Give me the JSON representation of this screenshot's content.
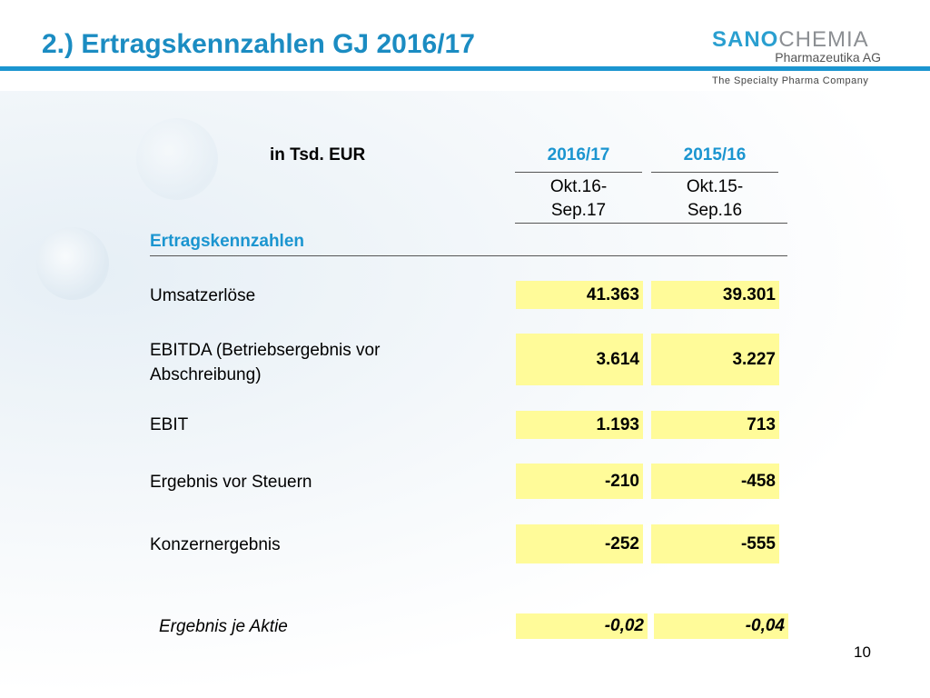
{
  "title": "2.) Ertragskennzahlen GJ 2016/17",
  "logo": {
    "sano": "SANO",
    "chemia": "CHEMIA",
    "sub": "Pharmazeutika AG",
    "tagline": "The Specialty Pharma Company"
  },
  "table": {
    "unit": "in Tsd. EUR",
    "columns": [
      {
        "year": "2016/17",
        "period_1": "Okt.16-",
        "period_2": "Sep.17"
      },
      {
        "year": "2015/16",
        "period_1": "Okt.15-",
        "period_2": "Sep.16"
      }
    ],
    "section": "Ertragskennzahlen",
    "rows": [
      {
        "label": "Umsatzerlöse",
        "values": [
          "41.363",
          "39.301"
        ]
      },
      {
        "label_1": "EBITDA (Betriebsergebnis vor",
        "label_2": "Abschreibung)",
        "values": [
          "3.614",
          "3.227"
        ]
      },
      {
        "label": "EBIT",
        "values": [
          "1.193",
          "713"
        ]
      },
      {
        "label": "Ergebnis vor Steuern",
        "values": [
          "-210",
          "-458"
        ]
      },
      {
        "label": "Konzernergebnis",
        "values": [
          "-252",
          "-555"
        ]
      },
      {
        "label": "Ergebnis je Aktie",
        "values": [
          "-0,02",
          "-0,04"
        ]
      }
    ]
  },
  "page_number": "10"
}
